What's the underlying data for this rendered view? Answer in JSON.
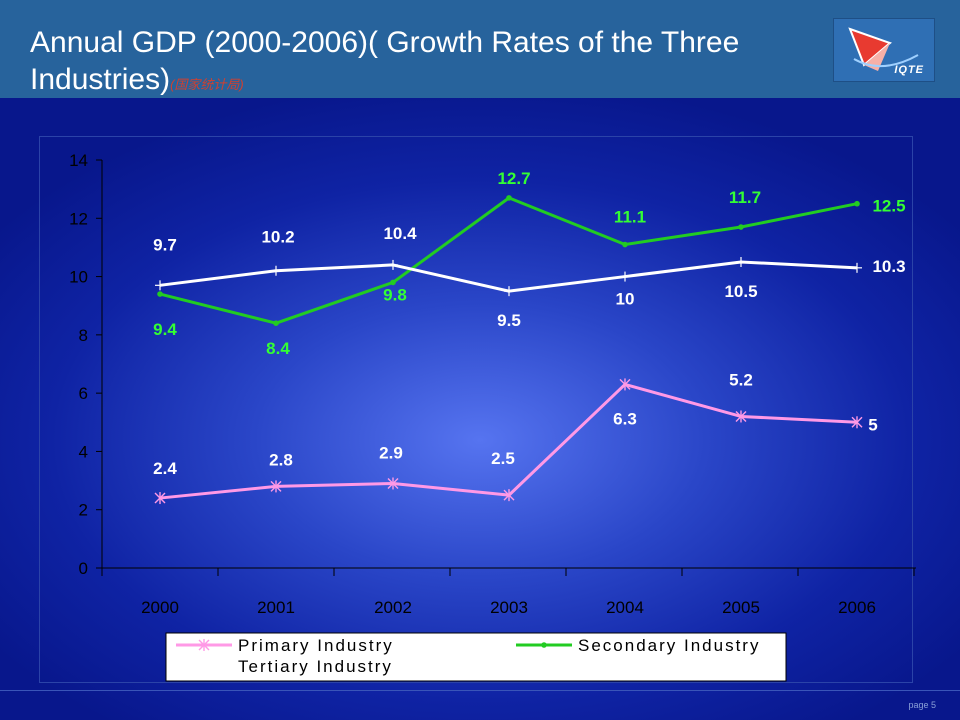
{
  "slide": {
    "title": "Annual GDP (2000-2006)( Growth Rates of the Three Industries)",
    "title_note": "(国家统计局)",
    "logo_text": "IQTE",
    "page_label": "page 5"
  },
  "colors": {
    "header_bg": "#27639c",
    "primary": "#ff99e6",
    "secondary": "#22cc22",
    "tertiary": "#ffffff",
    "label_secondary": "#33ff33"
  },
  "chart_data": {
    "type": "line",
    "title": "",
    "xlabel": "",
    "ylabel": "",
    "categories": [
      "2000",
      "2001",
      "2002",
      "2003",
      "2004",
      "2005",
      "2006"
    ],
    "ylim": [
      0,
      14
    ],
    "yticks": [
      0,
      2,
      4,
      6,
      8,
      10,
      12,
      14
    ],
    "grid": false,
    "legend_position": "bottom",
    "series": [
      {
        "name": "Primary Industry",
        "values": [
          2.4,
          2.8,
          2.9,
          2.5,
          6.3,
          5.2,
          5
        ]
      },
      {
        "name": "Secondary Industry",
        "values": [
          9.4,
          8.4,
          9.8,
          12.7,
          11.1,
          11.7,
          12.5
        ]
      },
      {
        "name": "Tertiary Industry",
        "values": [
          9.7,
          10.2,
          10.4,
          9.5,
          10,
          10.5,
          10.3
        ]
      }
    ]
  }
}
